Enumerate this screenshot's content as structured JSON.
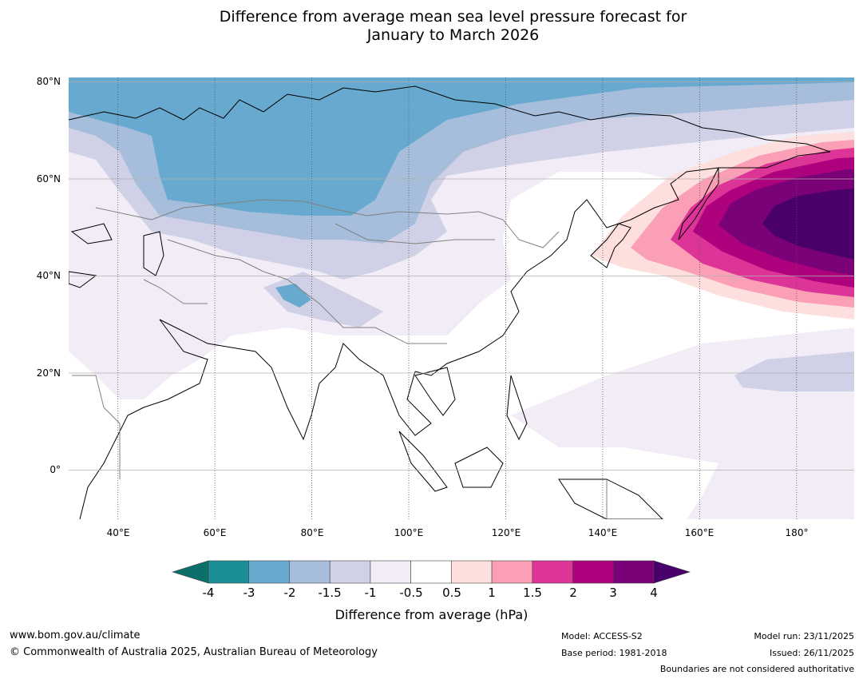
{
  "title": {
    "line1": "Difference from average mean sea level pressure forecast for",
    "line2": "January to March 2026"
  },
  "map": {
    "lat_labels": [
      "80°N",
      "60°N",
      "40°N",
      "20°N",
      "0°"
    ],
    "lon_labels": [
      "40°E",
      "60°E",
      "80°E",
      "100°E",
      "120°E",
      "140°E",
      "160°E",
      "180°"
    ],
    "extent": {
      "lon_min": 30,
      "lon_max": 192,
      "lat_min": -10,
      "lat_max": 81
    }
  },
  "colorbar": {
    "ticks": [
      "-4",
      "-3",
      "-2",
      "-1.5",
      "-1",
      "-0.5",
      "0.5",
      "1",
      "1.5",
      "2",
      "3",
      "4"
    ],
    "colors": [
      "#1b8f97",
      "#67a9cf",
      "#a6bddb",
      "#d0d1e6",
      "#f2ecf6",
      "#ffffff",
      "#fde0dd",
      "#fa9fb5",
      "#dd3497",
      "#ae017e",
      "#7a0177",
      "#49006a"
    ],
    "under_color": "#0c6f6a",
    "over_color": "#49006a",
    "label": "Difference from average (hPa)"
  },
  "footer": {
    "url": "www.bom.gov.au/climate",
    "copyright": "© Commonwealth of Australia 2025, Australian Bureau of Meteorology",
    "model": "Model: ACCESS-S2",
    "base_period": "Base period: 1981-2018",
    "model_run": "Model run: 23/11/2025",
    "issued": "Issued: 26/11/2025",
    "disclaimer": "Boundaries are not considered authoritative"
  }
}
